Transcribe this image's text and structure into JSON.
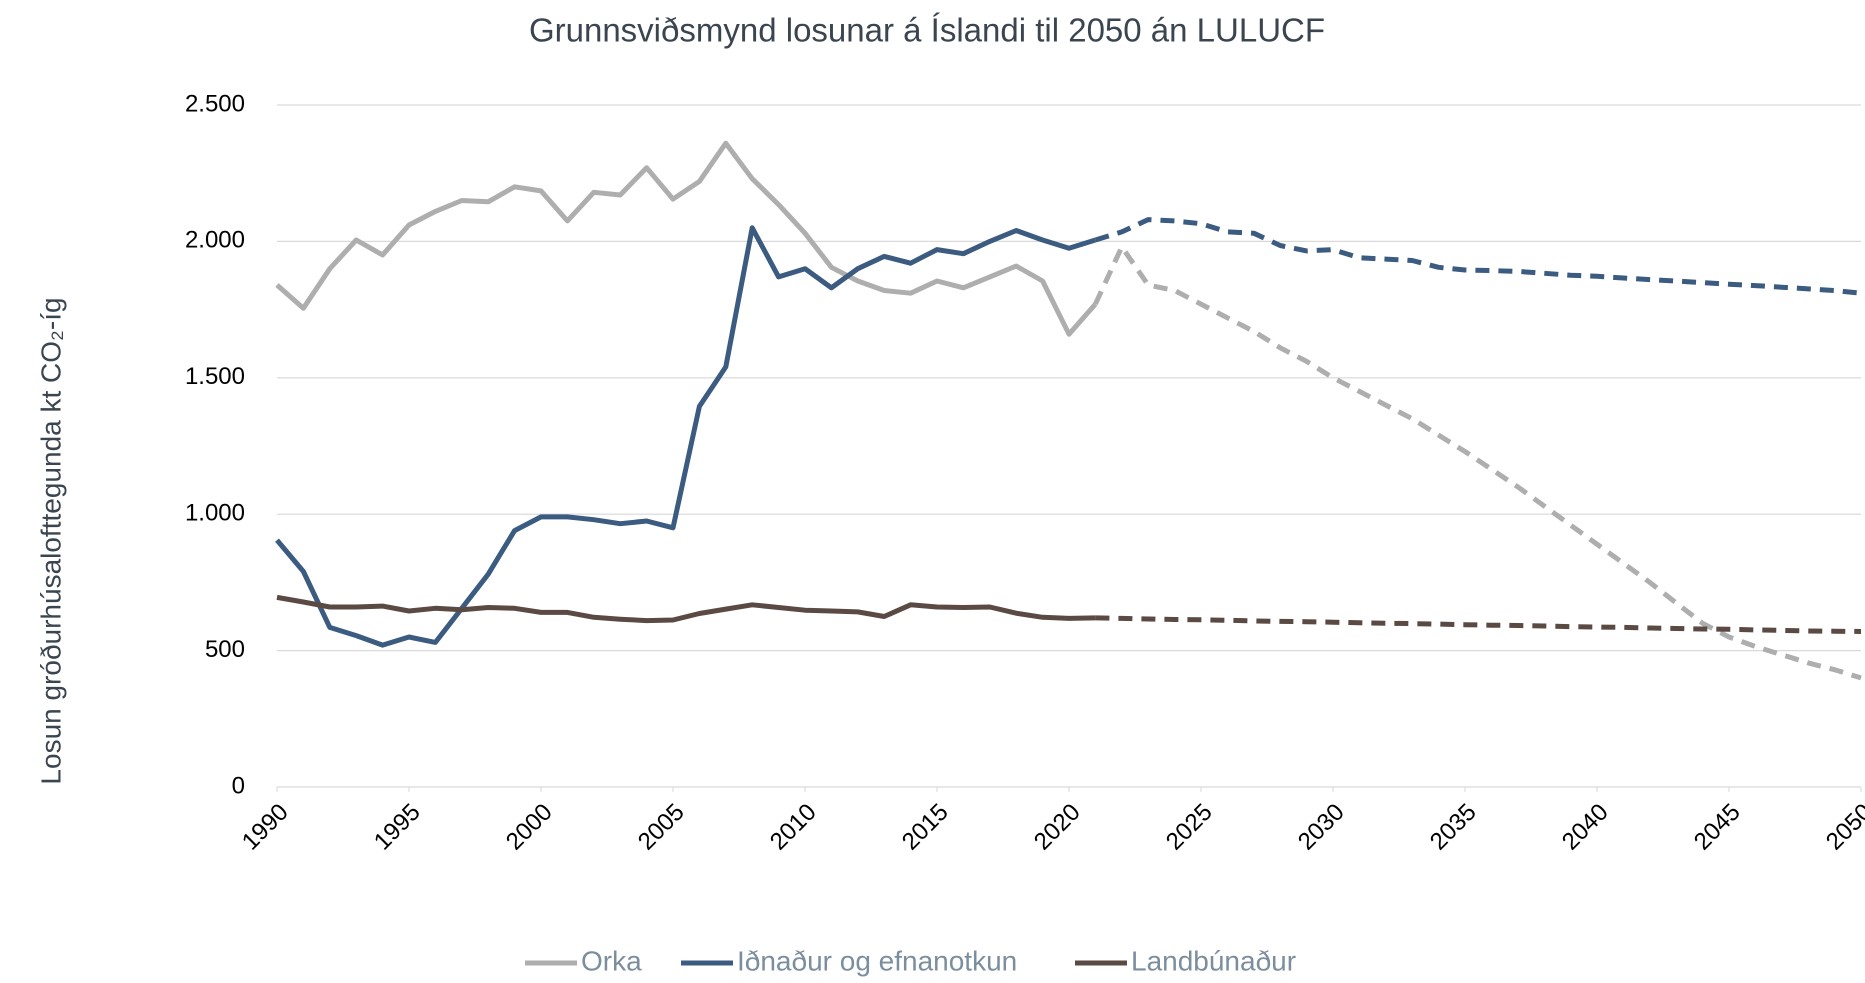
{
  "chart_data": {
    "type": "line",
    "title": "Grunnsviðsmynd losunar á Íslandi til 2050 án LULUCF",
    "y_label": "Losun gróðurhúsalofttegunda kt CO₂-íg",
    "x": [
      1990,
      1991,
      1992,
      1993,
      1994,
      1995,
      1996,
      1997,
      1998,
      1999,
      2000,
      2001,
      2002,
      2003,
      2004,
      2005,
      2006,
      2007,
      2008,
      2009,
      2010,
      2011,
      2012,
      2013,
      2014,
      2015,
      2016,
      2017,
      2018,
      2019,
      2020,
      2021,
      2022,
      2023,
      2024,
      2025,
      2026,
      2027,
      2028,
      2029,
      2030,
      2031,
      2032,
      2033,
      2034,
      2035,
      2036,
      2037,
      2038,
      2039,
      2040,
      2041,
      2042,
      2043,
      2044,
      2045,
      2046,
      2047,
      2048,
      2049,
      2050
    ],
    "projection_from": 2021,
    "series": [
      {
        "name": "Orka",
        "color": "#aeaeae",
        "values": [
          1840,
          1755,
          1900,
          2005,
          1950,
          2060,
          2110,
          2150,
          2145,
          2200,
          2185,
          2075,
          2180,
          2170,
          2270,
          2155,
          2220,
          2360,
          2230,
          2135,
          2030,
          1905,
          1855,
          1820,
          1810,
          1855,
          1830,
          1870,
          1910,
          1855,
          1660,
          1770,
          1980,
          1840,
          1820,
          1770,
          1720,
          1670,
          1610,
          1560,
          1500,
          1450,
          1400,
          1350,
          1290,
          1230,
          1165,
          1100,
          1030,
          960,
          890,
          820,
          750,
          675,
          600,
          550,
          515,
          485,
          455,
          430,
          400
        ]
      },
      {
        "name": "Iðnaður og efnanotkun",
        "color": "#3b5b80",
        "values": [
          905,
          790,
          585,
          555,
          520,
          550,
          530,
          655,
          780,
          940,
          990,
          990,
          980,
          965,
          975,
          950,
          1395,
          1540,
          2050,
          1870,
          1900,
          1830,
          1900,
          1945,
          1920,
          1970,
          1955,
          2000,
          2040,
          2005,
          1975,
          2005,
          2035,
          2080,
          2075,
          2065,
          2035,
          2030,
          1985,
          1965,
          1970,
          1940,
          1935,
          1930,
          1905,
          1895,
          1893,
          1890,
          1883,
          1876,
          1872,
          1866,
          1860,
          1855,
          1849,
          1843,
          1838,
          1832,
          1826,
          1820,
          1810
        ]
      },
      {
        "name": "Landbúnaður",
        "color": "#5b4a44",
        "values": [
          695,
          678,
          660,
          660,
          663,
          645,
          655,
          650,
          658,
          655,
          640,
          640,
          622,
          615,
          610,
          612,
          636,
          652,
          668,
          658,
          648,
          645,
          642,
          625,
          668,
          660,
          658,
          660,
          637,
          622,
          618,
          620,
          618,
          616,
          614,
          613,
          611,
          609,
          607,
          606,
          604,
          602,
          600,
          599,
          597,
          595,
          593,
          592,
          590,
          588,
          586,
          585,
          583,
          581,
          579,
          578,
          576,
          574,
          572,
          571,
          570
        ]
      }
    ],
    "xlim": [
      1990,
      2050
    ],
    "xticks": [
      1990,
      1995,
      2000,
      2005,
      2010,
      2015,
      2020,
      2025,
      2030,
      2035,
      2040,
      2045,
      2050
    ],
    "ylim": [
      0,
      2500
    ],
    "yticks": [
      0,
      500,
      {
        "value": 1000,
        "label": "1.000"
      },
      {
        "value": 1500,
        "label": "1.500"
      },
      {
        "value": 2000,
        "label": "2.000"
      },
      {
        "value": 2500,
        "label": "2.500"
      }
    ],
    "grid": true,
    "legend": "bottom"
  }
}
